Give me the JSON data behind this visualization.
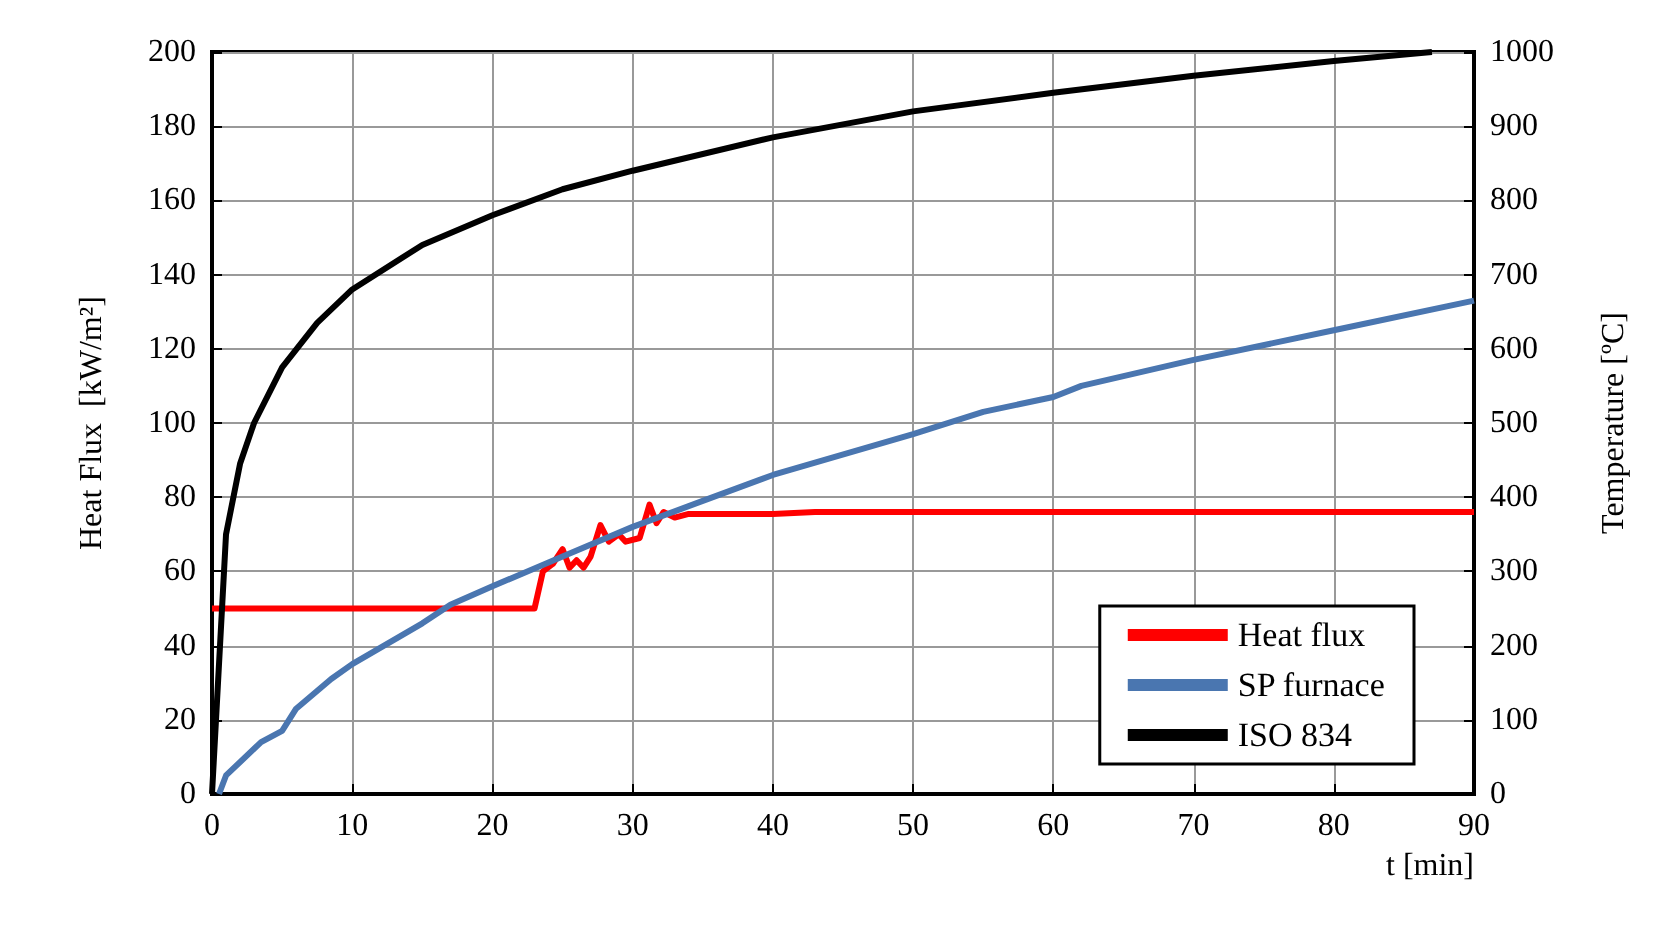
{
  "chart_data": {
    "type": "line",
    "xlabel": "t [min]",
    "ylabel": "Heat Flux  [kW/m²]",
    "y2label": "Temperature [ºC]",
    "xlim": [
      0,
      90
    ],
    "xticks": [
      0,
      10,
      20,
      30,
      40,
      50,
      60,
      70,
      80,
      90
    ],
    "ylim": [
      0,
      200
    ],
    "yticks": [
      0,
      20,
      40,
      60,
      80,
      100,
      120,
      140,
      160,
      180,
      200
    ],
    "y2lim": [
      0,
      1000
    ],
    "y2ticks": [
      0,
      100,
      200,
      300,
      400,
      500,
      600,
      700,
      800,
      900,
      1000
    ],
    "grid": true,
    "legend": "bottom right",
    "marker": "none",
    "line_style": "solid",
    "series": [
      {
        "name": "Heat flux",
        "color": "#ff0000",
        "x": [
          0,
          23,
          23.6,
          24.3,
          25,
          25.5,
          26,
          26.5,
          27,
          27.7,
          28.3,
          29,
          29.5,
          30.5,
          31.2,
          31.7,
          32.2,
          33,
          34,
          40,
          43,
          90
        ],
        "values": [
          50,
          50,
          60,
          62,
          66,
          61,
          63,
          61,
          64,
          72.5,
          68,
          70,
          68,
          69,
          78,
          73,
          76,
          74.5,
          75.5,
          75.5,
          76,
          76
        ]
      },
      {
        "name": "SP furnace",
        "color": "#4a76b0",
        "axis": "y2",
        "x": [
          0.5,
          1,
          3.5,
          5,
          6,
          8.5,
          10,
          15,
          17,
          20,
          25,
          30,
          35,
          40,
          50,
          55,
          60,
          62,
          70,
          80,
          90
        ],
        "values": [
          0,
          25,
          70,
          85,
          115,
          155,
          175,
          230,
          255,
          280,
          320,
          360,
          395,
          430,
          485,
          515,
          535,
          550,
          585,
          625,
          665
        ]
      },
      {
        "name": "ISO 834",
        "color": "#000000",
        "axis": "y2",
        "x": [
          0,
          1,
          2,
          3,
          5,
          7.5,
          10,
          15,
          20,
          25,
          30,
          40,
          50,
          60,
          70,
          80,
          87
        ],
        "values": [
          0,
          350,
          445,
          500,
          575,
          635,
          680,
          740,
          780,
          815,
          840,
          885,
          920,
          945,
          968,
          988,
          1000
        ]
      }
    ]
  }
}
